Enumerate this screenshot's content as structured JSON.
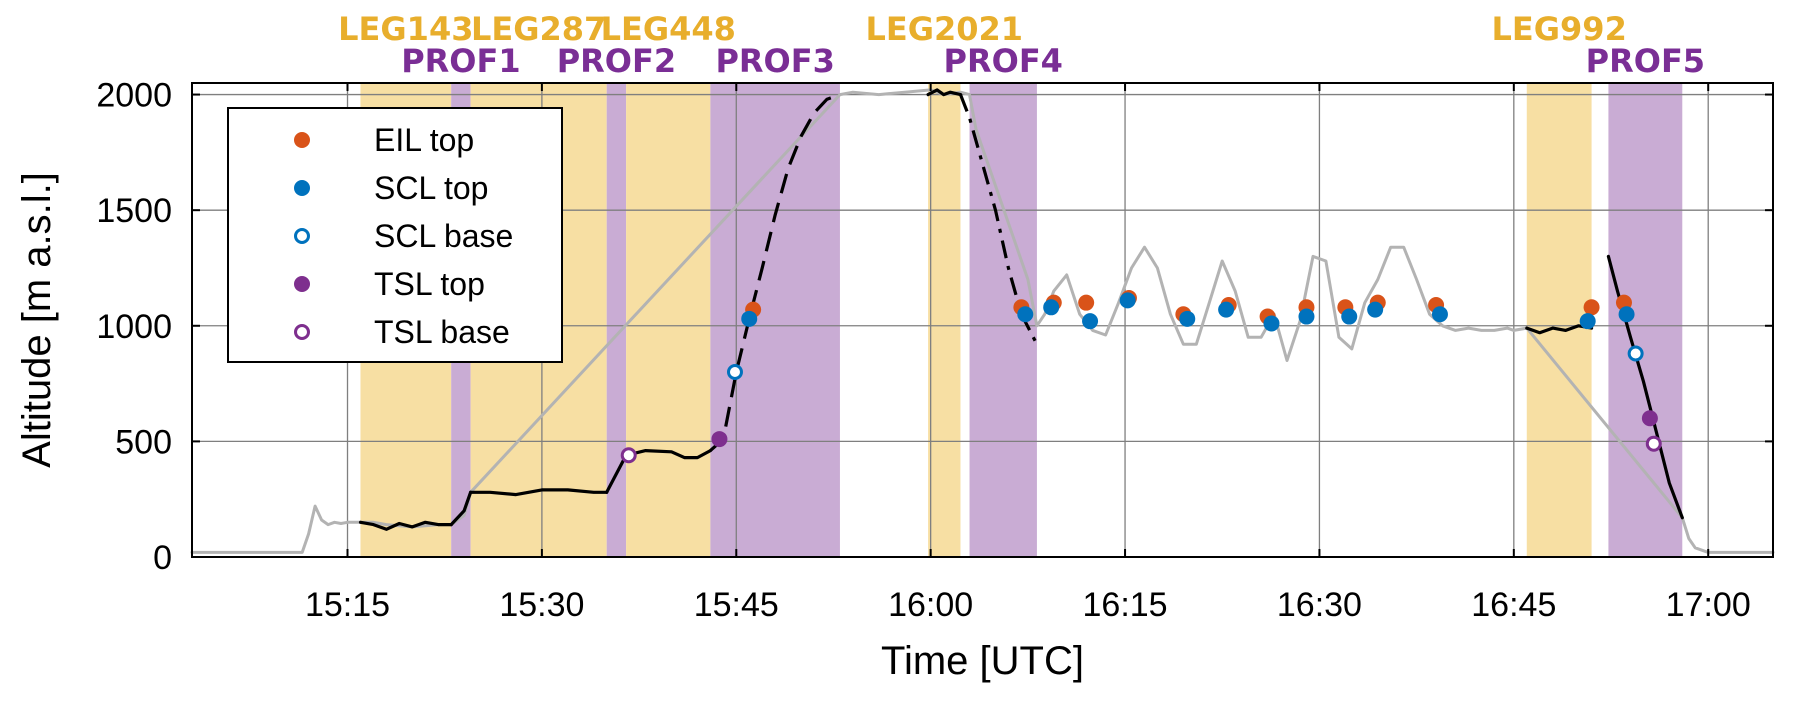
{
  "chart_data": {
    "type": "line",
    "xlabel": "Time [UTC]",
    "ylabel": "Altitude [m a.s.l.]",
    "xlim": [
      "15:03",
      "17:05"
    ],
    "ylim": [
      0,
      2050
    ],
    "x_ticks": [
      "15:15",
      "15:30",
      "15:45",
      "16:00",
      "16:15",
      "16:30",
      "16:45",
      "17:00"
    ],
    "y_ticks": [
      0,
      500,
      1000,
      1500,
      2000
    ],
    "grid": true,
    "legend_position": "upper-left",
    "colors": {
      "leg": "#F7DFA3",
      "prof": "#C9ACD4",
      "leg_label": "#E8AE2C",
      "prof_label": "#7A2E95",
      "track": "#b3b3b3",
      "segment_line": "#000000",
      "eil_top": "#D95319",
      "scl": "#0072BD",
      "tsl": "#7E2F8E"
    },
    "segments": [
      {
        "name": "LEG143",
        "kind": "leg",
        "start": "15:16",
        "end": "15:23"
      },
      {
        "name": "PROF1",
        "kind": "prof",
        "start": "15:23",
        "end": "15:24.5"
      },
      {
        "name": "LEG287",
        "kind": "leg",
        "start": "15:24.5",
        "end": "15:35"
      },
      {
        "name": "PROF2",
        "kind": "prof",
        "start": "15:35",
        "end": "15:36.5"
      },
      {
        "name": "LEG448",
        "kind": "leg",
        "start": "15:36.5",
        "end": "15:43"
      },
      {
        "name": "PROF3",
        "kind": "prof",
        "start": "15:43",
        "end": "15:53"
      },
      {
        "name": "LEG2021",
        "kind": "leg",
        "start": "15:59.8",
        "end": "16:02.3"
      },
      {
        "name": "PROF4",
        "kind": "prof",
        "start": "16:03",
        "end": "16:08.2"
      },
      {
        "name": "LEG992",
        "kind": "leg",
        "start": "16:46",
        "end": "16:51"
      },
      {
        "name": "PROF5",
        "kind": "prof",
        "start": "16:52.3",
        "end": "16:58"
      }
    ],
    "series": [
      {
        "name": "flight track",
        "style": "solid-gray",
        "x": [
          "15:03",
          "15:11.5",
          "15:12",
          "15:12.5",
          "15:13",
          "15:13.5",
          "15:14",
          "15:14.5",
          "15:15",
          "15:15.5",
          "15:16",
          "15:17",
          "15:18",
          "15:20",
          "15:22",
          "15:23",
          "15:24",
          "15:24.5",
          "15:53",
          "15:54",
          "15:56",
          "15:58",
          "16:00",
          "16:01",
          "16:02.3",
          "16:03",
          "16:03.5",
          "16:07.5",
          "16:08.2",
          "16:08.8",
          "16:09.5",
          "16:10.5",
          "16:11.5",
          "16:12.5",
          "16:13.5",
          "16:14.5",
          "16:15.5",
          "16:16.5",
          "16:17.5",
          "16:18.5",
          "16:19.5",
          "16:20.5",
          "16:21.5",
          "16:22.5",
          "16:23.5",
          "16:24.5",
          "16:25.5",
          "16:26.5",
          "16:27.5",
          "16:28.5",
          "16:29.5",
          "16:30.5",
          "16:31.5",
          "16:32.5",
          "16:33.5",
          "16:34.5",
          "16:35.5",
          "16:36.5",
          "16:37.5",
          "16:38.5",
          "16:39.5",
          "16:40.5",
          "16:41.5",
          "16:42.5",
          "16:43.5",
          "16:44.5",
          "16:45",
          "16:46",
          "16:58",
          "16:58.5",
          "16:59",
          "17:00",
          "17:01",
          "17:05"
        ],
        "y": [
          20,
          20,
          100,
          220,
          160,
          140,
          150,
          145,
          150,
          150,
          150,
          150,
          140,
          130,
          140,
          140,
          180,
          280,
          2000,
          2010,
          2000,
          2010,
          2020,
          2000,
          2010,
          2000,
          1850,
          1200,
          1000,
          1050,
          1150,
          1220,
          1050,
          980,
          960,
          1100,
          1250,
          1340,
          1250,
          1050,
          920,
          920,
          1100,
          1280,
          1150,
          950,
          950,
          1050,
          850,
          1020,
          1300,
          1280,
          950,
          900,
          1100,
          1200,
          1340,
          1340,
          1200,
          1050,
          1000,
          980,
          990,
          980,
          980,
          990,
          980,
          990,
          170,
          80,
          40,
          20,
          20,
          20
        ]
      },
      {
        "name": "LEG143 track",
        "style": "solid-black",
        "x": [
          "15:16",
          "15:17",
          "15:18",
          "15:19",
          "15:20",
          "15:21",
          "15:22",
          "15:23"
        ],
        "y": [
          150,
          140,
          120,
          145,
          130,
          150,
          140,
          140
        ]
      },
      {
        "name": "PROF1 track",
        "style": "solid-black",
        "x": [
          "15:23",
          "15:24",
          "15:24.5"
        ],
        "y": [
          140,
          200,
          280
        ]
      },
      {
        "name": "LEG287 track",
        "style": "solid-black",
        "x": [
          "15:24.5",
          "15:26",
          "15:28",
          "15:30",
          "15:32",
          "15:34",
          "15:35"
        ],
        "y": [
          280,
          280,
          270,
          290,
          290,
          280,
          280
        ]
      },
      {
        "name": "PROF2 track",
        "style": "solid-black",
        "x": [
          "15:35",
          "15:36.5"
        ],
        "y": [
          280,
          440
        ]
      },
      {
        "name": "LEG448 track",
        "style": "solid-black",
        "x": [
          "15:36.5",
          "15:38",
          "15:40",
          "15:41",
          "15:42",
          "15:43"
        ],
        "y": [
          440,
          460,
          455,
          430,
          430,
          460
        ]
      },
      {
        "name": "PROF3 track",
        "style": "dashed-black",
        "x": [
          "15:43",
          "15:44",
          "15:45",
          "15:46",
          "15:47",
          "15:48",
          "15:49",
          "15:50",
          "15:51",
          "15:52",
          "15:53"
        ],
        "y": [
          460,
          510,
          800,
          1030,
          1250,
          1480,
          1680,
          1820,
          1920,
          1980,
          2000
        ]
      },
      {
        "name": "LEG2021 track",
        "style": "solid-black",
        "x": [
          "15:59.8",
          "16:00.5",
          "16:01",
          "16:01.5",
          "16:02.3"
        ],
        "y": [
          2000,
          2020,
          2000,
          2010,
          2000
        ]
      },
      {
        "name": "PROF4 track",
        "style": "dashdot-black",
        "x": [
          "16:02.3",
          "16:03",
          "16:04",
          "16:05",
          "16:06",
          "16:07",
          "16:08.2"
        ],
        "y": [
          2000,
          1900,
          1700,
          1500,
          1250,
          1050,
          920
        ]
      },
      {
        "name": "LEG992 track",
        "style": "solid-black",
        "x": [
          "16:46",
          "16:47",
          "16:48",
          "16:49",
          "16:50",
          "16:51"
        ],
        "y": [
          990,
          970,
          990,
          980,
          1000,
          990
        ]
      },
      {
        "name": "PROF5 track",
        "style": "solid-black",
        "x": [
          "16:52.3",
          "16:53",
          "16:54",
          "16:55",
          "16:56",
          "16:57",
          "16:58"
        ],
        "y": [
          1300,
          1150,
          950,
          760,
          540,
          320,
          170
        ]
      },
      {
        "name": "EIL top",
        "style": "marker-filled",
        "color": "#D95319",
        "x": [
          "15:46.3",
          "16:07",
          "16:09.5",
          "16:12",
          "16:15.3",
          "16:19.5",
          "16:23",
          "16:26",
          "16:29",
          "16:32",
          "16:34.5",
          "16:39",
          "16:51",
          "16:53.5"
        ],
        "y": [
          1070,
          1080,
          1100,
          1100,
          1120,
          1050,
          1090,
          1040,
          1080,
          1080,
          1100,
          1090,
          1080,
          1100
        ]
      },
      {
        "name": "SCL top",
        "style": "marker-filled",
        "color": "#0072BD",
        "x": [
          "15:46",
          "16:07.3",
          "16:09.3",
          "16:12.3",
          "16:15.2",
          "16:19.8",
          "16:22.8",
          "16:26.3",
          "16:29",
          "16:32.3",
          "16:34.3",
          "16:39.3",
          "16:50.7",
          "16:53.7"
        ],
        "y": [
          1030,
          1050,
          1080,
          1020,
          1110,
          1030,
          1070,
          1010,
          1040,
          1040,
          1070,
          1050,
          1020,
          1050
        ]
      },
      {
        "name": "SCL base",
        "style": "marker-open",
        "color": "#0072BD",
        "x": [
          "15:44.9",
          "16:54.4"
        ],
        "y": [
          800,
          880
        ]
      },
      {
        "name": "TSL top",
        "style": "marker-filled",
        "color": "#7E2F8E",
        "x": [
          "15:43.7",
          "16:55.5"
        ],
        "y": [
          510,
          600
        ]
      },
      {
        "name": "TSL base",
        "style": "marker-open",
        "color": "#7E2F8E",
        "x": [
          "15:36.7",
          "16:55.8"
        ],
        "y": [
          440,
          490
        ]
      }
    ],
    "legend": [
      "EIL top",
      "SCL top",
      "SCL base",
      "TSL top",
      "TSL base"
    ]
  }
}
